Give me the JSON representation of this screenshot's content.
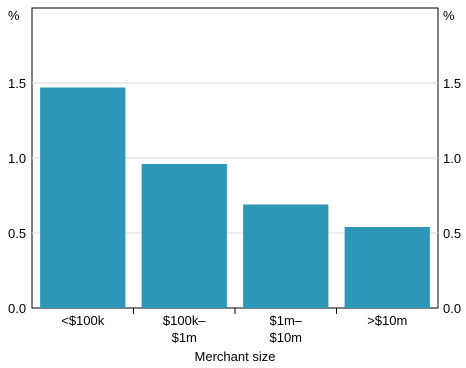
{
  "chart_data": {
    "type": "bar",
    "title": "",
    "xlabel": "Merchant size",
    "ylabel": "%",
    "ylabel_right": "%",
    "categories": [
      [
        "<$100k"
      ],
      [
        "$100k–",
        "$1m"
      ],
      [
        "$1m–",
        "$10m"
      ],
      [
        ">$10m"
      ]
    ],
    "values": [
      1.47,
      0.96,
      0.69,
      0.54
    ],
    "ylim": [
      0,
      2.0
    ],
    "yticks": [
      "0.0",
      "0.5",
      "1.0",
      "1.5"
    ],
    "grid": true,
    "bar_color": "#2E96B7",
    "grid_color": "#D9D9D9"
  }
}
